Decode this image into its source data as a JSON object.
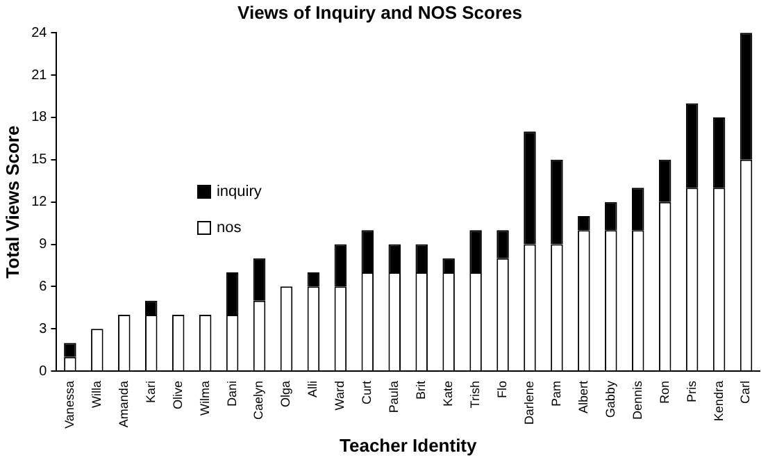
{
  "chart_data": {
    "type": "bar",
    "title": "Views of Inquiry and NOS Scores",
    "xlabel": "Teacher Identity",
    "ylabel": "Total Views Score",
    "categories": [
      "Vanessa",
      "Willa",
      "Amanda",
      "Kari",
      "Olive",
      "Wilma",
      "Dani",
      "Caelyn",
      "Olga",
      "Alli",
      "Ward",
      "Curt",
      "Paula",
      "Brit",
      "Kate",
      "Trish",
      "Flo",
      "Darlene",
      "Pam",
      "Albert",
      "Gabby",
      "Dennis",
      "Ron",
      "Pris",
      "Kendra",
      "Carl"
    ],
    "series": [
      {
        "name": "nos",
        "color": "#ffffff",
        "values": [
          1,
          3,
          4,
          4,
          4,
          4,
          4,
          5,
          6,
          6,
          6,
          7,
          7,
          7,
          7,
          7,
          8,
          9,
          9,
          10,
          10,
          10,
          12,
          13,
          13,
          15
        ]
      },
      {
        "name": "inquiry",
        "color": "#000000",
        "values": [
          1,
          0,
          0,
          1,
          0,
          0,
          3,
          3,
          0,
          1,
          3,
          3,
          2,
          2,
          1,
          3,
          2,
          8,
          6,
          1,
          2,
          3,
          3,
          6,
          5,
          9
        ]
      }
    ],
    "stacked": true,
    "ylim": [
      0,
      24
    ],
    "yticks": [
      0,
      3,
      6,
      9,
      12,
      15,
      18,
      21,
      24
    ],
    "grid": false,
    "legend": "left"
  }
}
